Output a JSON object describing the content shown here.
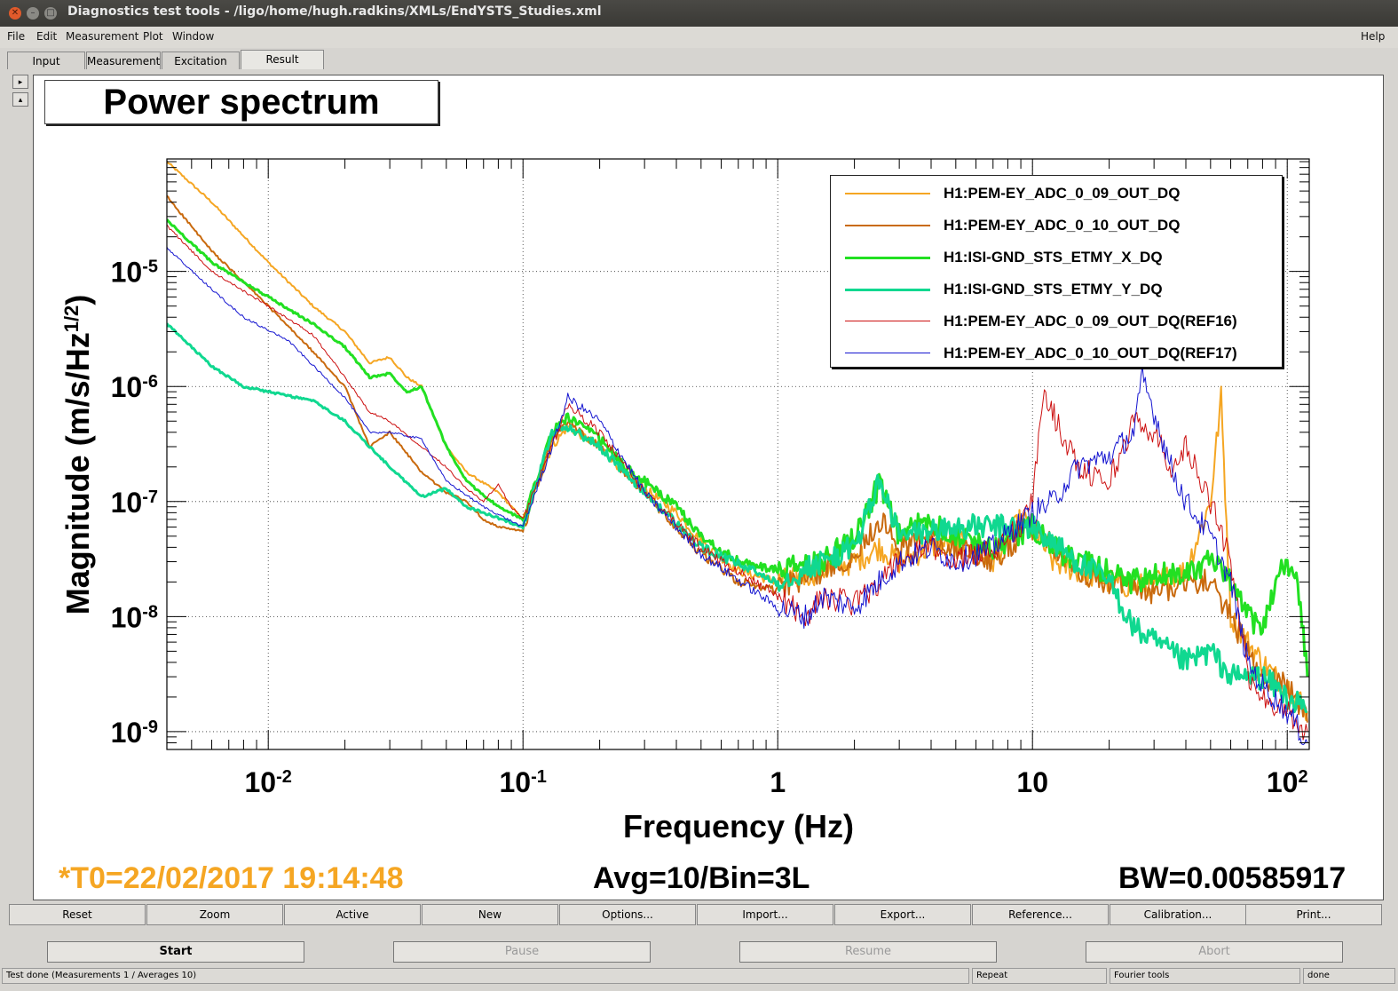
{
  "window": {
    "title": "Diagnostics test tools - /ligo/home/hugh.radkins/XMLs/EndYSTS_Studies.xml"
  },
  "menu": {
    "file": "File",
    "edit": "Edit",
    "measurement": "Measurement",
    "plot": "Plot",
    "window": "Window",
    "help": "Help"
  },
  "tabs": {
    "input": "Input",
    "measurement": "Measurement",
    "excitation": "Excitation",
    "result": "Result"
  },
  "plot": {
    "title": "Power spectrum",
    "footer_t0": "*T0=22/02/2017 19:14:48",
    "footer_avg": "Avg=10/Bin=3L",
    "footer_bw": "BW=0.00585917",
    "t0_color": "#f5a623"
  },
  "chart_data": {
    "type": "line",
    "title": "Power spectrum",
    "xlabel": "Frequency (Hz)",
    "ylabel": "Magnitude (m/s/Hz^(1/2))",
    "x_scale": "log",
    "y_scale": "log",
    "xlim": [
      0.004,
      122
    ],
    "ylim": [
      7e-10,
      9.5e-05
    ],
    "grid": true,
    "legend_position": "top-right",
    "x_ticks": [
      {
        "value": 0.01,
        "base": "10",
        "exp": "-2"
      },
      {
        "value": 0.1,
        "base": "10",
        "exp": "-1"
      },
      {
        "value": 1,
        "base": "1",
        "exp": ""
      },
      {
        "value": 10,
        "base": "10",
        "exp": ""
      },
      {
        "value": 100,
        "base": "10",
        "exp": "2"
      }
    ],
    "y_ticks": [
      {
        "value": 1e-05,
        "base": "10",
        "exp": "-5"
      },
      {
        "value": 1e-06,
        "base": "10",
        "exp": "-6"
      },
      {
        "value": 1e-07,
        "base": "10",
        "exp": "-7"
      },
      {
        "value": 1e-08,
        "base": "10",
        "exp": "-8"
      },
      {
        "value": 1e-09,
        "base": "10",
        "exp": "-9"
      }
    ],
    "series": [
      {
        "name": "H1:PEM-EY_ADC_0_09_OUT_DQ",
        "color": "#f5a623",
        "width": 2,
        "x": [
          0.004,
          0.006,
          0.01,
          0.015,
          0.02,
          0.025,
          0.03,
          0.035,
          0.04,
          0.05,
          0.06,
          0.08,
          0.1,
          0.13,
          0.15,
          0.2,
          0.25,
          0.3,
          0.4,
          0.5,
          0.7,
          1,
          1.5,
          2,
          2.5,
          3,
          4,
          5,
          7,
          9,
          10,
          12,
          15,
          20,
          25,
          30,
          40,
          50,
          55,
          60,
          70,
          80,
          90,
          100,
          110,
          120
        ],
        "y": [
          9e-05,
          4e-05,
          1.2e-05,
          5e-06,
          3e-06,
          1.6e-06,
          1.8e-06,
          1.2e-06,
          1e-06,
          3e-07,
          1.8e-07,
          1.2e-07,
          7e-08,
          3e-07,
          4.5e-07,
          3e-07,
          1.8e-07,
          1.3e-07,
          8e-08,
          4.5e-08,
          2.5e-08,
          2e-08,
          2.5e-08,
          3e-08,
          4e-08,
          3e-08,
          4e-08,
          4.5e-08,
          3e-08,
          7e-08,
          6e-08,
          3e-08,
          2.5e-08,
          2e-08,
          1.8e-08,
          2e-08,
          2.5e-08,
          1e-07,
          8e-07,
          1e-08,
          6e-09,
          4e-09,
          3e-09,
          2.5e-09,
          2e-09,
          1.5e-09
        ]
      },
      {
        "name": "H1:PEM-EY_ADC_0_10_OUT_DQ",
        "color": "#c96a0e",
        "width": 2,
        "x": [
          0.004,
          0.006,
          0.01,
          0.015,
          0.02,
          0.025,
          0.03,
          0.04,
          0.05,
          0.06,
          0.07,
          0.08,
          0.1,
          0.13,
          0.15,
          0.2,
          0.3,
          0.4,
          0.5,
          0.7,
          1,
          1.5,
          2,
          2.5,
          3,
          4,
          5,
          7,
          10,
          15,
          20,
          30,
          40,
          50,
          60,
          70,
          80,
          100,
          120
        ],
        "y": [
          4.5e-05,
          1.5e-05,
          5e-06,
          2e-06,
          1e-06,
          3e-07,
          4e-07,
          1.8e-07,
          1.2e-07,
          1e-07,
          7e-08,
          6e-08,
          5.5e-08,
          3.5e-07,
          4.8e-07,
          3e-07,
          1.2e-07,
          6e-08,
          3.5e-08,
          2e-08,
          1.7e-08,
          2.5e-08,
          3.5e-08,
          7e-08,
          4e-08,
          5e-08,
          4e-08,
          3e-08,
          6e-08,
          2.5e-08,
          2e-08,
          1.6e-08,
          2e-08,
          2e-08,
          1e-08,
          5e-09,
          3e-09,
          2.5e-09,
          1.2e-09
        ]
      },
      {
        "name": "H1:ISI-GND_STS_ETMY_X_DQ",
        "color": "#22e022",
        "width": 3,
        "x": [
          0.004,
          0.006,
          0.01,
          0.015,
          0.02,
          0.025,
          0.03,
          0.035,
          0.04,
          0.05,
          0.06,
          0.08,
          0.1,
          0.13,
          0.15,
          0.2,
          0.25,
          0.3,
          0.4,
          0.5,
          0.7,
          1,
          1.5,
          2,
          2.5,
          3,
          4,
          5,
          7,
          10,
          12,
          15,
          20,
          25,
          30,
          40,
          50,
          60,
          70,
          80,
          90,
          100,
          110,
          120
        ],
        "y": [
          2.8e-05,
          1.2e-05,
          6e-06,
          3.5e-06,
          2.2e-06,
          1.2e-06,
          1.3e-06,
          9e-07,
          1e-06,
          3e-07,
          1.5e-07,
          9e-08,
          7e-08,
          4e-07,
          5.5e-07,
          3.5e-07,
          2e-07,
          1.5e-07,
          9e-08,
          5e-08,
          3e-08,
          2.5e-08,
          3e-08,
          5e-08,
          1.4e-07,
          5e-08,
          7e-08,
          5e-08,
          4e-08,
          6e-08,
          4e-08,
          3e-08,
          2.5e-08,
          2e-08,
          2.2e-08,
          2.5e-08,
          3e-08,
          2e-08,
          1e-08,
          8e-09,
          2e-08,
          3e-08,
          2e-08,
          3e-09
        ]
      },
      {
        "name": "H1:ISI-GND_STS_ETMY_Y_DQ",
        "color": "#10d890",
        "width": 3,
        "x": [
          0.004,
          0.006,
          0.008,
          0.01,
          0.015,
          0.02,
          0.025,
          0.03,
          0.04,
          0.05,
          0.06,
          0.07,
          0.1,
          0.13,
          0.15,
          0.2,
          0.3,
          0.5,
          1,
          2,
          2.5,
          3,
          5,
          10,
          15,
          20,
          25,
          30,
          40,
          50,
          60,
          80,
          100,
          120
        ],
        "y": [
          3.5e-06,
          1.5e-06,
          1e-06,
          9e-07,
          7.5e-07,
          5e-07,
          3e-07,
          2e-07,
          1.1e-07,
          1.3e-07,
          9e-08,
          8e-08,
          6e-08,
          4e-07,
          4.5e-07,
          3e-07,
          1.2e-07,
          4e-08,
          2e-08,
          4e-08,
          1.5e-07,
          5e-08,
          6e-08,
          6e-08,
          3e-08,
          2e-08,
          8e-09,
          6e-09,
          4e-09,
          5e-09,
          3e-09,
          3e-09,
          2e-09,
          1.5e-09
        ]
      },
      {
        "name": "H1:PEM-EY_ADC_0_09_OUT_DQ(REF16)",
        "color": "#cc1010",
        "width": 1,
        "x": [
          0.004,
          0.006,
          0.01,
          0.015,
          0.02,
          0.025,
          0.03,
          0.04,
          0.05,
          0.06,
          0.07,
          0.08,
          0.09,
          0.1,
          0.13,
          0.15,
          0.2,
          0.3,
          0.5,
          1,
          1.3,
          1.5,
          2,
          2.5,
          3,
          4,
          5,
          7,
          9,
          10,
          11,
          12,
          15,
          20,
          25,
          30,
          35,
          40,
          50,
          60,
          70,
          80,
          100,
          120
        ],
        "y": [
          2.5e-05,
          1e-05,
          5e-06,
          2.8e-06,
          1.2e-06,
          6e-07,
          5e-07,
          3e-07,
          2e-07,
          1.3e-07,
          1e-07,
          1.4e-07,
          9e-08,
          7e-08,
          3e-07,
          7e-07,
          4e-07,
          1.2e-07,
          4e-08,
          1.5e-08,
          1e-08,
          1.5e-08,
          1.3e-08,
          2e-08,
          3e-08,
          4e-08,
          3e-08,
          4e-08,
          6e-08,
          1e-07,
          9e-07,
          6e-07,
          2e-07,
          1.5e-07,
          5e-07,
          4e-07,
          2e-07,
          3e-07,
          1e-07,
          3e-08,
          3e-09,
          2e-09,
          1.5e-09,
          1e-09
        ]
      },
      {
        "name": "H1:PEM-EY_ADC_0_10_OUT_DQ(REF17)",
        "color": "#1414d0",
        "width": 1,
        "x": [
          0.004,
          0.006,
          0.008,
          0.012,
          0.02,
          0.025,
          0.03,
          0.04,
          0.05,
          0.07,
          0.1,
          0.13,
          0.15,
          0.2,
          0.3,
          0.5,
          1,
          1.3,
          1.5,
          2,
          2.5,
          3,
          4,
          5,
          7,
          10,
          12,
          15,
          20,
          25,
          27,
          30,
          35,
          40,
          50,
          60,
          70,
          80,
          100,
          120
        ],
        "y": [
          1.6e-05,
          7e-06,
          4e-06,
          2.5e-06,
          8e-07,
          4e-07,
          4e-07,
          3.5e-07,
          1.5e-07,
          9e-08,
          6e-08,
          3e-07,
          8e-07,
          5e-07,
          1.2e-07,
          3.5e-08,
          1.2e-08,
          1e-08,
          1.5e-08,
          1.2e-08,
          2e-08,
          3e-08,
          4e-08,
          3e-08,
          4e-08,
          8e-08,
          1e-07,
          2e-07,
          2.5e-07,
          4e-07,
          1.2e-06,
          6e-07,
          2e-07,
          1e-07,
          5e-08,
          2e-08,
          4e-09,
          2.5e-09,
          1.5e-09,
          8e-10
        ]
      }
    ]
  },
  "toolbar": {
    "reset": "Reset",
    "zoom": "Zoom",
    "active": "Active",
    "new": "New",
    "options": "Options...",
    "import": "Import...",
    "export": "Export...",
    "reference": "Reference...",
    "calibration": "Calibration...",
    "print": "Print..."
  },
  "controls": {
    "start": "Start",
    "pause": "Pause",
    "resume": "Resume",
    "abort": "Abort"
  },
  "statusbar": {
    "message": "Test done (Measurements 1 / Averages 10)",
    "repeat": "Repeat",
    "tools": "Fourier tools",
    "state": "done"
  }
}
